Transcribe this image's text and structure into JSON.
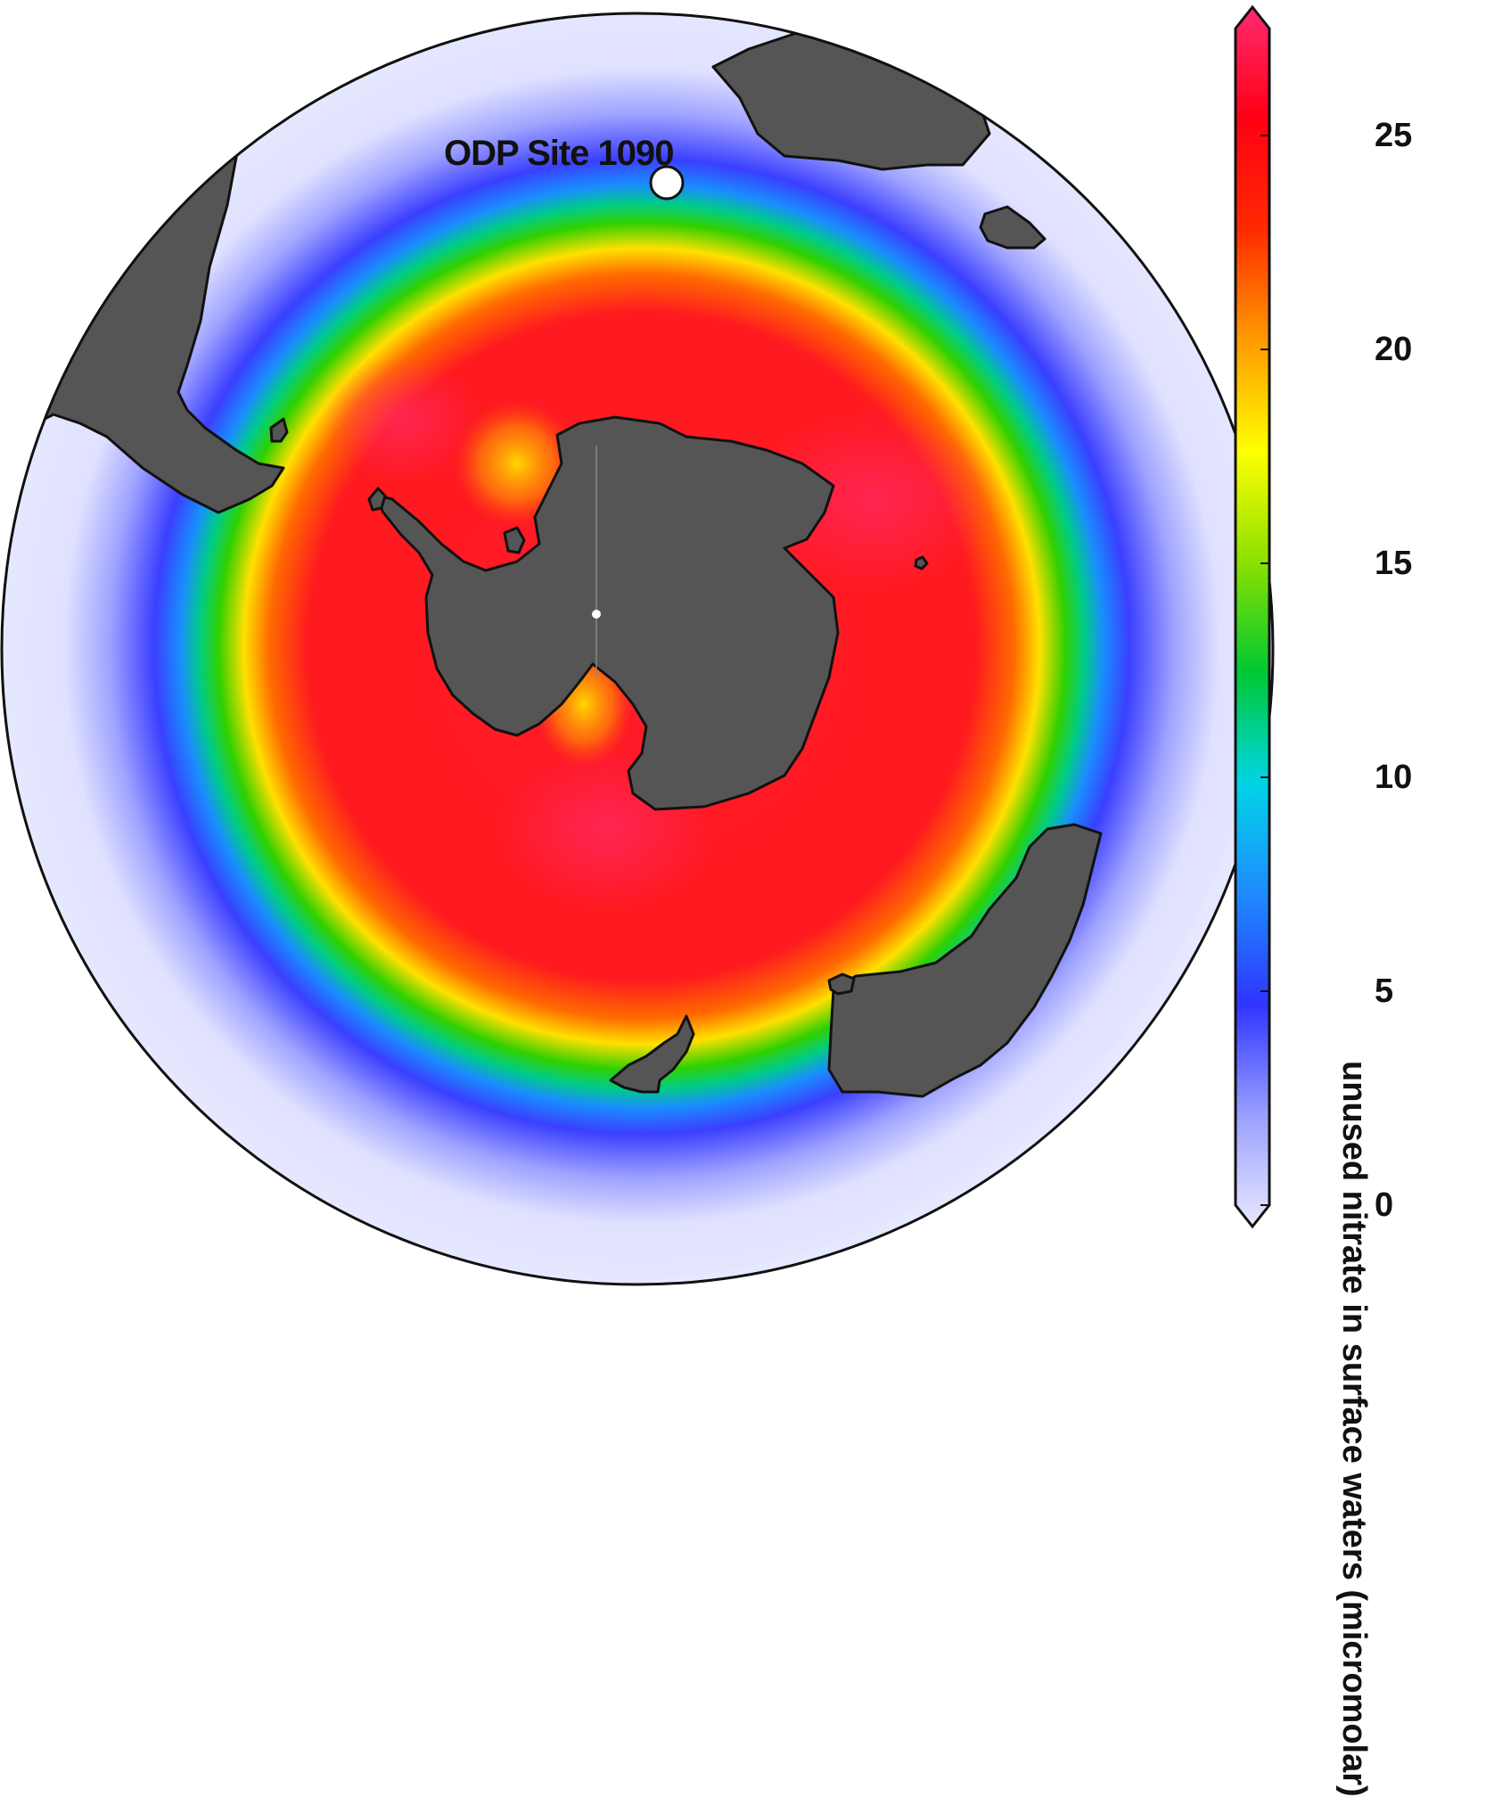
{
  "map": {
    "projection": "South Polar Stereographic",
    "marker": {
      "label": "ODP Site 1090"
    },
    "land_color": "#555555",
    "ocean_low_color": "#e4e6ff"
  },
  "colorbar": {
    "label": "unused nitrate in surface waters (micromolar)",
    "ticks": [
      "0",
      "5",
      "10",
      "15",
      "20",
      "25"
    ],
    "range": [
      0,
      27.5
    ],
    "extend": "both",
    "colormap": [
      "#e8e8ff",
      "#9aa0ff",
      "#2f35ff",
      "#1f8bff",
      "#00d4e6",
      "#00c832",
      "#8ce000",
      "#ffff00",
      "#ff9a00",
      "#ff2a00",
      "#ff0015",
      "#ff2a70"
    ]
  }
}
